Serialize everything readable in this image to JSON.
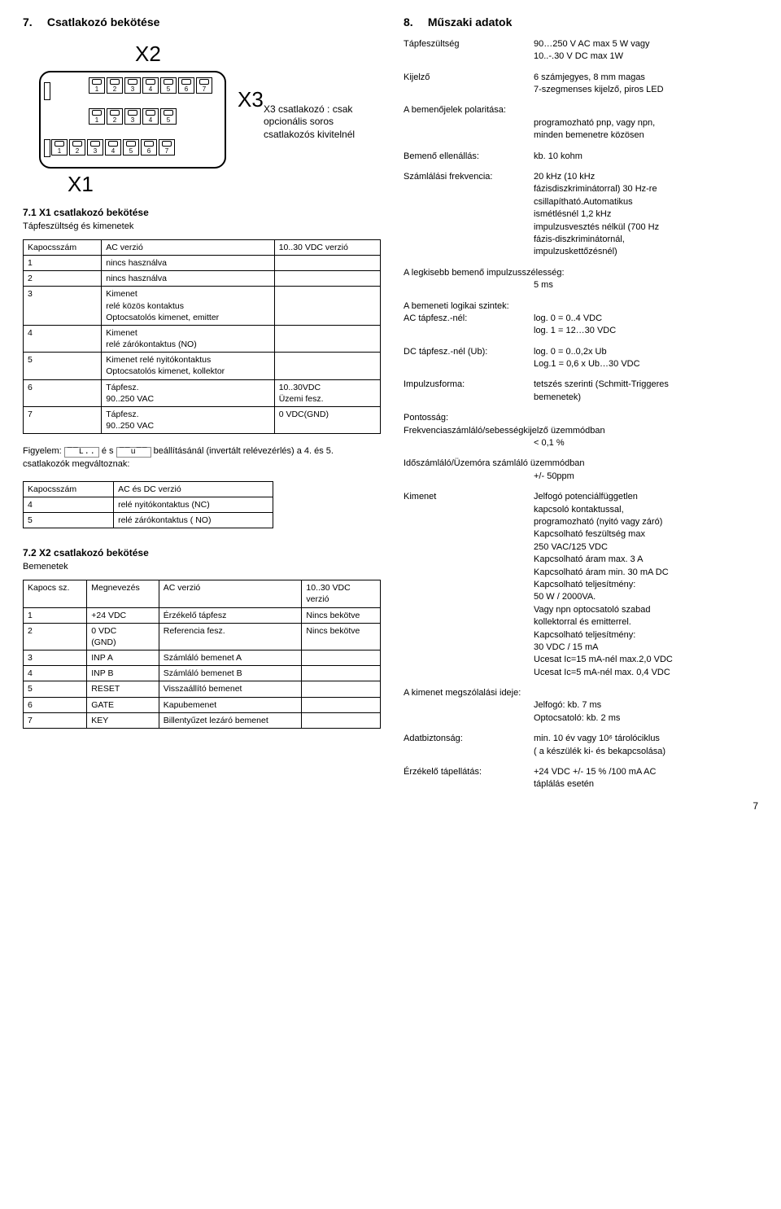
{
  "left": {
    "section7": {
      "num": "7.",
      "title": "Csatlakozó bekötése"
    },
    "labels": {
      "x2": "X2",
      "x3": "X3",
      "x1": "X1"
    },
    "x3_desc_l1": "X3 csatlakozó :  csak",
    "x3_desc_l2": "opcionális soros",
    "x3_desc_l3": "csatlakozós kivitelnél",
    "termrow1": [
      "1",
      "2",
      "3",
      "4",
      "5",
      "6",
      "7"
    ],
    "termrow2": [
      "1",
      "2",
      "3",
      "4",
      "5"
    ],
    "termrow3": [
      "1",
      "2",
      "3",
      "4",
      "5",
      "6",
      "7"
    ],
    "s71_head": "7.1  X1 csatlakozó bekötése",
    "s71_sub": "Tápfeszültség és kimenetek",
    "t1_head": [
      "Kapocsszám",
      "AC verzió",
      "10..30 VDC verzió"
    ],
    "t1_rows": [
      [
        "1",
        "nincs használva",
        ""
      ],
      [
        "2",
        "nincs használva",
        ""
      ],
      [
        "3",
        "Kimenet\nrelé közös kontaktus\nOptocsatolós kimenet, emitter",
        ""
      ],
      [
        "4",
        "Kimenet\nrelé zárókontaktus (NO)",
        ""
      ],
      [
        "5",
        "Kimenet relé nyitókontaktus\nOptocsatolós kimenet, kollektor",
        ""
      ],
      [
        "6",
        "Tápfesz.\n90..250 VAC",
        "10..30VDC\nÜzemi fesz."
      ],
      [
        "7",
        "Tápfesz.\n90..250 VAC",
        "0 VDC(GND)"
      ]
    ],
    "note_pre": "Figyelem: ",
    "note_seg1": "¯¯L..",
    "note_mid1": " é s ",
    "note_seg2": "¯¯u¯¯",
    "note_mid2": " beállításánál (invertált relévezérlés) a 4. és 5. csatlakozók megváltoznak:",
    "t2_head": [
      "Kapocsszám",
      "AC és DC verzió"
    ],
    "t2_rows": [
      [
        "4",
        "relé nyitókontaktus (NC)"
      ],
      [
        "5",
        "relé zárókontaktus ( NO)"
      ]
    ],
    "s72_head": "7.2  X2 csatlakozó bekötése",
    "s72_sub": "Bemenetek",
    "t3_head": [
      "Kapocs sz.",
      "Megnevezés",
      "AC verzió",
      "10..30 VDC\nverzió"
    ],
    "t3_rows": [
      [
        "1",
        "+24 VDC",
        "Érzékelő tápfesz",
        "Nincs bekötve"
      ],
      [
        "2",
        "0 VDC\n(GND)",
        "Referencia fesz.",
        "Nincs bekötve"
      ],
      [
        "3",
        "INP A",
        "Számláló bemenet A",
        ""
      ],
      [
        "4",
        "INP B",
        "Számláló bemenet B",
        ""
      ],
      [
        "5",
        "RESET",
        "Visszaállító bemenet",
        ""
      ],
      [
        "6",
        "GATE",
        "Kapubemenet",
        ""
      ],
      [
        "7",
        "KEY",
        "Billentyűzet lezáró bemenet",
        ""
      ]
    ]
  },
  "right": {
    "section8": {
      "num": "8.",
      "title": "Műszaki adatok"
    },
    "r1": {
      "label": "Tápfeszültség",
      "val": "90…250 V AC max 5 W vagy\n10..-.30 V DC max 1W"
    },
    "r2": {
      "label": "Kijelző",
      "val": "6 számjegyes, 8 mm magas\n7-szegmenses kijelző, piros LED"
    },
    "r3": {
      "label": "A bemenőjelek polaritása:",
      "val": "programozható pnp, vagy npn,\nminden bemenetre közösen"
    },
    "r4": {
      "label": "Bemenő ellenállás:",
      "val": "kb. 10 kohm"
    },
    "r5": {
      "label": "Számlálási frekvencia:",
      "val": "20 kHz (10 kHz\nfázisdiszkriminátorral) 30 Hz-re\ncsillapítható.Automatikus\nismétlésnél 1,2 kHz\nimpulzusvesztés nélkül (700 Hz\nfázis-diszkriminátornál,\nimpulzuskettőzésnél)"
    },
    "r6": {
      "label": "A legkisebb bemenő impulzusszélesség:",
      "val": "5 ms"
    },
    "r7": {
      "label": "A bemeneti logikai szintek:",
      "val": ""
    },
    "r7a": {
      "label": "AC tápfesz.-nél:",
      "val": "log. 0 = 0..4 VDC\nlog. 1 = 12…30 VDC"
    },
    "r7b": {
      "label": "DC tápfesz.-nél (Ub):",
      "val": "log. 0 = 0..0,2x Ub\nLog.1 = 0,6 x Ub…30 VDC"
    },
    "r8": {
      "label": "Impulzusforma:",
      "val": "tetszés szerinti (Schmitt-Triggeres\nbemenetek)"
    },
    "r9a": "Pontosság:",
    "r9b": "Frekvenciaszámláló/sebességkijelző üzemmódban",
    "r9c": "< 0,1 %",
    "r10a": "Időszámláló/Üzemóra számláló üzemmódban",
    "r10b": "+/- 50ppm",
    "r11": {
      "label": "Kimenet",
      "val": "Jelfogó potenciálfüggetlen\nkapcsoló kontaktussal,\nprogramozható (nyitó vagy záró)\nKapcsolható feszültség max\n250 VAC/125 VDC\nKapcsolható áram max. 3 A\nKapcsolható áram min. 30 mA DC\nKapcsolható teljesítmény:\n               50 W / 2000VA.\nVagy npn optocsatoló szabad\nkollektorral és emitterrel.\nKapcsolható teljesítmény:\n               30 VDC / 15 mA\nUcesat Ic=15 mA-nél max.2,0 VDC\nUcesat Ic=5 mA-nél  max. 0,4 VDC"
    },
    "r12a": "A kimenet megszólalási ideje:",
    "r12b": "Jelfogó: kb. 7 ms",
    "r12c": "Optocsatoló: kb. 2 ms",
    "r13": {
      "label": "Adatbiztonság:",
      "val": "min. 10 év vagy 10⁶ tárolóciklus\n( a készülék ki- és bekapcsolása)"
    },
    "r14": {
      "label": "Érzékelő tápellátás:",
      "val": "+24 VDC +/- 15 % /100 mA  AC\ntáplálás esetén"
    }
  },
  "pagenum": "7"
}
